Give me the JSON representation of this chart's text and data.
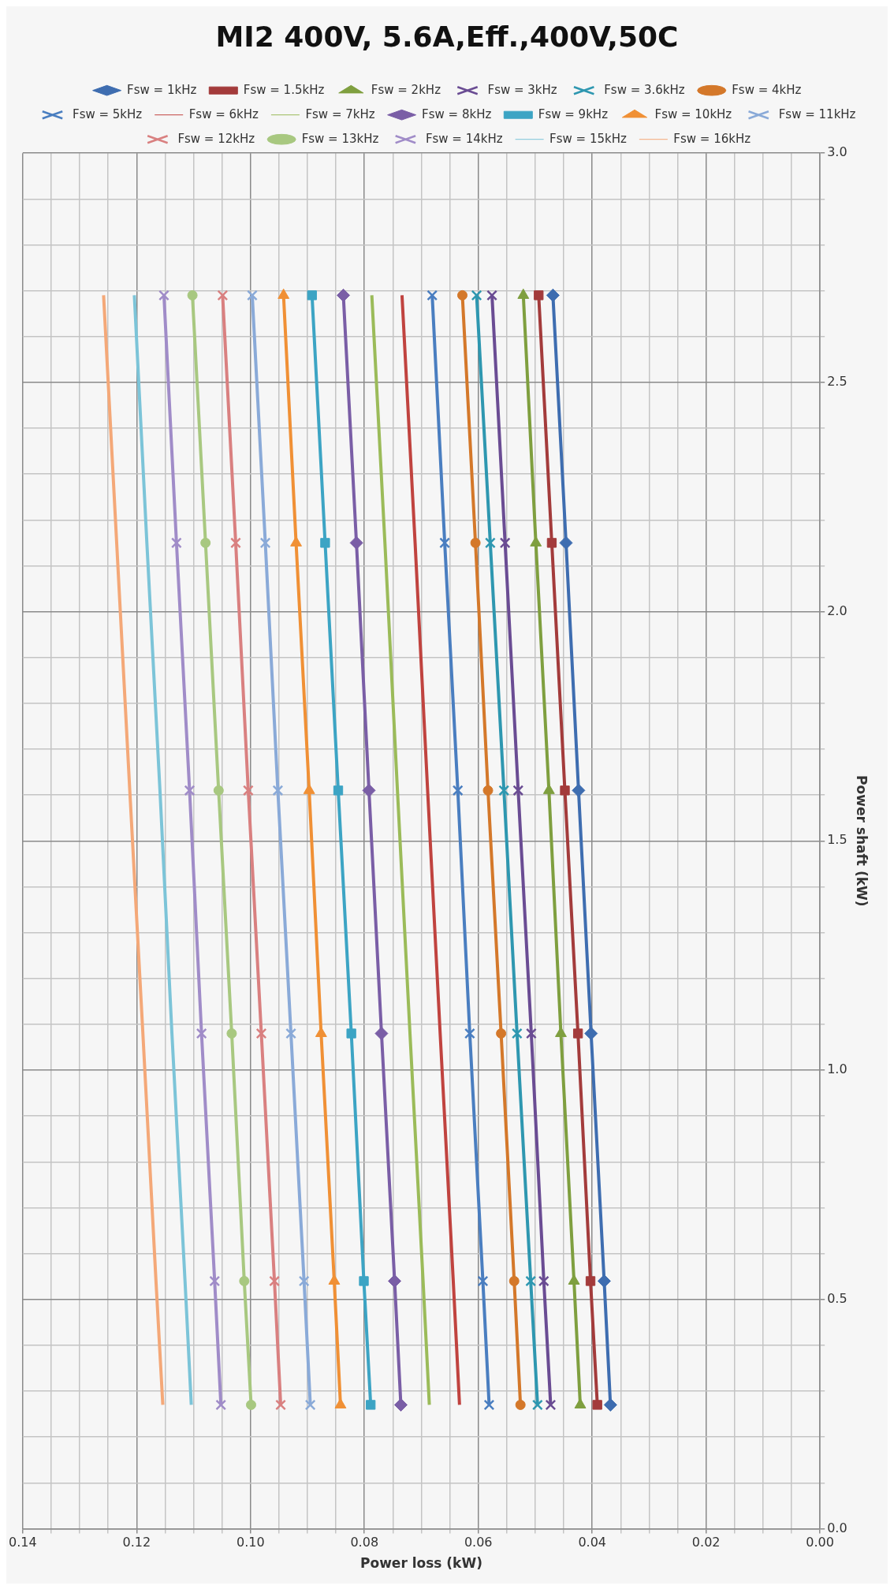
{
  "chart_data": {
    "type": "line",
    "title": "MI2 400V, 5.6A,Eff.,400V,50C",
    "xlabel": "Power loss (kW)",
    "ylabel": "Power shaft (kW)",
    "xlim": [
      0.14,
      0
    ],
    "xticks": [
      {
        "value": 0.14,
        "label": "0.14"
      },
      {
        "value": 0.135,
        "label": null
      },
      {
        "value": 0.13,
        "label": null
      },
      {
        "value": 0.125,
        "label": null
      },
      {
        "value": 0.12,
        "label": "0.12"
      },
      {
        "value": 0.115,
        "label": null
      },
      {
        "value": 0.11,
        "label": null
      },
      {
        "value": 0.105,
        "label": null
      },
      {
        "value": 0.1,
        "label": "0.10"
      },
      {
        "value": 0.095,
        "label": null
      },
      {
        "value": 0.09,
        "label": null
      },
      {
        "value": 0.085,
        "label": null
      },
      {
        "value": 0.08,
        "label": "0.08"
      },
      {
        "value": 0.075,
        "label": null
      },
      {
        "value": 0.07,
        "label": null
      },
      {
        "value": 0.065,
        "label": null
      },
      {
        "value": 0.06,
        "label": "0.06"
      },
      {
        "value": 0.055,
        "label": null
      },
      {
        "value": 0.05,
        "label": null
      },
      {
        "value": 0.045,
        "label": null
      },
      {
        "value": 0.04,
        "label": "0.04"
      },
      {
        "value": 0.035,
        "label": null
      },
      {
        "value": 0.03,
        "label": null
      },
      {
        "value": 0.025,
        "label": null
      },
      {
        "value": 0.02,
        "label": "0.02"
      },
      {
        "value": 0.015,
        "label": null
      },
      {
        "value": 0.01,
        "label": null
      },
      {
        "value": 0.005,
        "label": null
      },
      {
        "value": 0,
        "label": "0.00"
      }
    ],
    "ylim": [
      0,
      3
    ],
    "yticks": [
      {
        "value": 0,
        "label": "0.0"
      },
      {
        "value": 0.1,
        "label": null
      },
      {
        "value": 0.2,
        "label": null
      },
      {
        "value": 0.3,
        "label": null
      },
      {
        "value": 0.4,
        "label": null
      },
      {
        "value": 0.5,
        "label": "0.5"
      },
      {
        "value": 0.6,
        "label": null
      },
      {
        "value": 0.7,
        "label": null
      },
      {
        "value": 0.8,
        "label": null
      },
      {
        "value": 0.9,
        "label": null
      },
      {
        "value": 1,
        "label": "1.0"
      },
      {
        "value": 1.1,
        "label": null
      },
      {
        "value": 1.2,
        "label": null
      },
      {
        "value": 1.3,
        "label": null
      },
      {
        "value": 1.4,
        "label": null
      },
      {
        "value": 1.5,
        "label": "1.5"
      },
      {
        "value": 1.6,
        "label": null
      },
      {
        "value": 1.7,
        "label": null
      },
      {
        "value": 1.8,
        "label": null
      },
      {
        "value": 1.9,
        "label": null
      },
      {
        "value": 2,
        "label": "2.0"
      },
      {
        "value": 2.1,
        "label": null
      },
      {
        "value": 2.2,
        "label": null
      },
      {
        "value": 2.3,
        "label": null
      },
      {
        "value": 2.4,
        "label": null
      },
      {
        "value": 2.5,
        "label": "2.5"
      },
      {
        "value": 2.6,
        "label": null
      },
      {
        "value": 2.7,
        "label": null
      },
      {
        "value": 2.8,
        "label": null
      },
      {
        "value": 2.9,
        "label": null
      },
      {
        "value": 3,
        "label": "3.0"
      }
    ],
    "grid": true,
    "legend": "top",
    "series": [
      {
        "name": "Fsw = 1kHz",
        "color": "#3e6db0",
        "marker": "diamond",
        "x": [
          0.0368,
          0.0379,
          0.0402,
          0.0424,
          0.0446,
          0.0469
        ],
        "values": [
          0.27,
          0.54,
          1.08,
          1.61,
          2.15,
          2.69
        ]
      },
      {
        "name": "Fsw = 1.5kHz",
        "color": "#a33b3b",
        "marker": "square",
        "x": [
          0.0391,
          0.0403,
          0.0425,
          0.0448,
          0.0471,
          0.0494
        ],
        "values": [
          0.27,
          0.54,
          1.08,
          1.61,
          2.15,
          2.69
        ]
      },
      {
        "name": "Fsw = 2kHz",
        "color": "#7f9f3f",
        "marker": "triangle",
        "x": [
          0.0421,
          0.0432,
          0.0455,
          0.0476,
          0.0499,
          0.0521
        ],
        "values": [
          0.27,
          0.54,
          1.08,
          1.61,
          2.15,
          2.69
        ]
      },
      {
        "name": "Fsw = 3kHz",
        "color": "#6a4c93",
        "marker": "cross",
        "x": [
          0.0473,
          0.0485,
          0.0507,
          0.053,
          0.0553,
          0.0576
        ],
        "values": [
          0.27,
          0.54,
          1.08,
          1.61,
          2.15,
          2.69
        ]
      },
      {
        "name": "Fsw = 3.6kHz",
        "color": "#2e97b0",
        "marker": "cross",
        "x": [
          0.0496,
          0.0508,
          0.0532,
          0.0555,
          0.0579,
          0.0603
        ],
        "values": [
          0.27,
          0.54,
          1.08,
          1.61,
          2.15,
          2.69
        ]
      },
      {
        "name": "Fsw = 4kHz",
        "color": "#d4782a",
        "marker": "circle",
        "x": [
          0.0526,
          0.0537,
          0.056,
          0.0583,
          0.0605,
          0.0628
        ],
        "values": [
          0.27,
          0.54,
          1.08,
          1.61,
          2.15,
          2.69
        ]
      },
      {
        "name": "Fsw = 5kHz",
        "color": "#4a7ec0",
        "marker": "cross",
        "x": [
          0.0581,
          0.0592,
          0.0615,
          0.0636,
          0.0659,
          0.0681
        ],
        "values": [
          0.27,
          0.54,
          1.08,
          1.61,
          2.15,
          2.69
        ]
      },
      {
        "name": "Fsw = 6kHz",
        "color": "#c0433f",
        "marker": "none",
        "x": [
          0.0633,
          0.0644,
          0.0667,
          0.0689,
          0.0711,
          0.0734
        ],
        "values": [
          0.27,
          0.54,
          1.08,
          1.61,
          2.15,
          2.69
        ]
      },
      {
        "name": "Fsw = 7kHz",
        "color": "#9bbb59",
        "marker": "none",
        "x": [
          0.0686,
          0.0697,
          0.072,
          0.0742,
          0.0764,
          0.0787
        ],
        "values": [
          0.27,
          0.54,
          1.08,
          1.61,
          2.15,
          2.69
        ]
      },
      {
        "name": "Fsw = 8kHz",
        "color": "#7a5ea6",
        "marker": "diamond",
        "x": [
          0.0736,
          0.0747,
          0.077,
          0.0792,
          0.0814,
          0.0837
        ],
        "values": [
          0.27,
          0.54,
          1.08,
          1.61,
          2.15,
          2.69
        ]
      },
      {
        "name": "Fsw = 9kHz",
        "color": "#3ca4c4",
        "marker": "square",
        "x": [
          0.0789,
          0.0801,
          0.0823,
          0.0846,
          0.0869,
          0.0892
        ],
        "values": [
          0.27,
          0.54,
          1.08,
          1.61,
          2.15,
          2.69
        ]
      },
      {
        "name": "Fsw = 10kHz",
        "color": "#f09035",
        "marker": "triangle",
        "x": [
          0.0842,
          0.0853,
          0.0876,
          0.0897,
          0.092,
          0.0942
        ],
        "values": [
          0.27,
          0.54,
          1.08,
          1.61,
          2.15,
          2.69
        ]
      },
      {
        "name": "Fsw = 11kHz",
        "color": "#8aaad8",
        "marker": "cross",
        "x": [
          0.0895,
          0.0906,
          0.0929,
          0.0952,
          0.0974,
          0.0997
        ],
        "values": [
          0.27,
          0.54,
          1.08,
          1.61,
          2.15,
          2.69
        ]
      },
      {
        "name": "Fsw = 12kHz",
        "color": "#d98080",
        "marker": "cross",
        "x": [
          0.0947,
          0.0958,
          0.0981,
          0.1004,
          0.1026,
          0.1049
        ],
        "values": [
          0.27,
          0.54,
          1.08,
          1.61,
          2.15,
          2.69
        ]
      },
      {
        "name": "Fsw = 13kHz",
        "color": "#a8c880",
        "marker": "circle",
        "x": [
          0.0999,
          0.1011,
          0.1033,
          0.1056,
          0.1079,
          0.1102
        ],
        "values": [
          0.27,
          0.54,
          1.08,
          1.61,
          2.15,
          2.69
        ]
      },
      {
        "name": "Fsw = 14kHz",
        "color": "#a08cc8",
        "marker": "cross",
        "x": [
          0.1052,
          0.1063,
          0.1086,
          0.1107,
          0.113,
          0.1152
        ],
        "values": [
          0.27,
          0.54,
          1.08,
          1.61,
          2.15,
          2.69
        ]
      },
      {
        "name": "Fsw = 15kHz",
        "color": "#7cc4d8",
        "marker": "none",
        "x": [
          0.1104,
          0.1115,
          0.1138,
          0.1159,
          0.1182,
          0.1204
        ],
        "values": [
          0.27,
          0.54,
          1.08,
          1.61,
          2.15,
          2.69
        ]
      },
      {
        "name": "Fsw = 16kHz",
        "color": "#f4a878",
        "marker": "none",
        "x": [
          0.1154,
          0.1166,
          0.1189,
          0.1212,
          0.1235,
          0.1258
        ],
        "values": [
          0.27,
          0.54,
          1.08,
          1.61,
          2.15,
          2.69
        ]
      }
    ]
  }
}
